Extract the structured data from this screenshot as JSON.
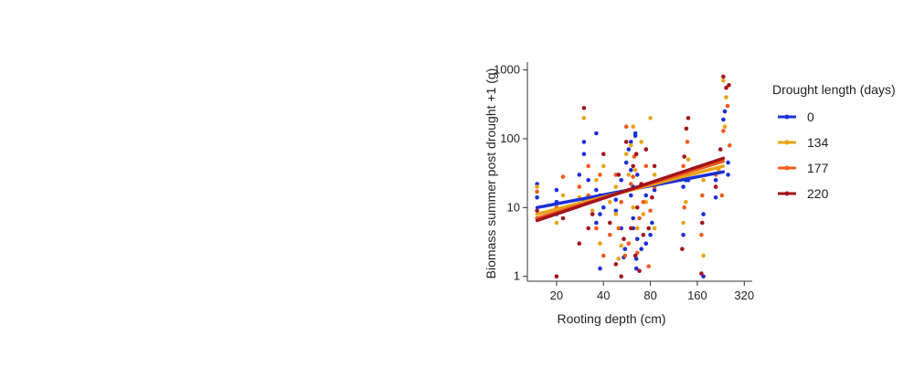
{
  "photo": {
    "description_icon": "field-trial-photo"
  },
  "chart_data": {
    "type": "scatter",
    "xlabel": "Rooting depth (cm)",
    "ylabel": "Biomass summer post drought +1 (g)",
    "x_scale": "log",
    "y_scale": "log",
    "xlim": [
      13,
      360
    ],
    "ylim": [
      0.85,
      1300
    ],
    "x_ticks": [
      20,
      40,
      80,
      160,
      320
    ],
    "y_ticks": [
      1,
      10,
      100,
      1000
    ],
    "legend_title": "Drought length (days)",
    "legend_position": "right",
    "series": [
      {
        "name": "0",
        "color": "#1a2fd6",
        "trend": [
          [
            15,
            10
          ],
          [
            235,
            33
          ]
        ],
        "points": [
          [
            15,
            14
          ],
          [
            15,
            22
          ],
          [
            20,
            12
          ],
          [
            20,
            18
          ],
          [
            20,
            8
          ],
          [
            28,
            30
          ],
          [
            30,
            12
          ],
          [
            30,
            60
          ],
          [
            30,
            90
          ],
          [
            32,
            25
          ],
          [
            36,
            6
          ],
          [
            36,
            18
          ],
          [
            36,
            120
          ],
          [
            38,
            8
          ],
          [
            38,
            1.3
          ],
          [
            40,
            10
          ],
          [
            48,
            13
          ],
          [
            48,
            9
          ],
          [
            52,
            5
          ],
          [
            52,
            25
          ],
          [
            54,
            1.9
          ],
          [
            55,
            2.5
          ],
          [
            56,
            45
          ],
          [
            58,
            70
          ],
          [
            60,
            35
          ],
          [
            60,
            15
          ],
          [
            60,
            90
          ],
          [
            62,
            5
          ],
          [
            62,
            7
          ],
          [
            62,
            20
          ],
          [
            64,
            110
          ],
          [
            64,
            120
          ],
          [
            65,
            1.3
          ],
          [
            65,
            1.8
          ],
          [
            66,
            3.5
          ],
          [
            66,
            30
          ],
          [
            70,
            2.5
          ],
          [
            75,
            3
          ],
          [
            75,
            15
          ],
          [
            80,
            4
          ],
          [
            82,
            6
          ],
          [
            85,
            18
          ],
          [
            130,
            4
          ],
          [
            130,
            20
          ],
          [
            135,
            25
          ],
          [
            135,
            30
          ],
          [
            140,
            25
          ],
          [
            175,
            1
          ],
          [
            175,
            8
          ],
          [
            210,
            14
          ],
          [
            210,
            25
          ],
          [
            235,
            190
          ],
          [
            240,
            250
          ],
          [
            252,
            45
          ],
          [
            252,
            30
          ]
        ]
      },
      {
        "name": "134",
        "color": "#e8a317",
        "trend": [
          [
            15,
            8
          ],
          [
            235,
            40
          ]
        ],
        "points": [
          [
            15,
            20
          ],
          [
            20,
            6
          ],
          [
            22,
            15
          ],
          [
            28,
            14
          ],
          [
            30,
            200
          ],
          [
            32,
            12
          ],
          [
            34,
            9
          ],
          [
            36,
            25
          ],
          [
            38,
            3
          ],
          [
            40,
            40
          ],
          [
            44,
            12
          ],
          [
            48,
            8
          ],
          [
            48,
            20
          ],
          [
            50,
            1.8
          ],
          [
            52,
            2.8
          ],
          [
            56,
            60
          ],
          [
            58,
            30
          ],
          [
            60,
            80
          ],
          [
            62,
            10
          ],
          [
            62,
            150
          ],
          [
            64,
            35
          ],
          [
            66,
            5
          ],
          [
            70,
            90
          ],
          [
            72,
            8
          ],
          [
            75,
            12
          ],
          [
            78,
            22
          ],
          [
            80,
            200
          ],
          [
            85,
            5
          ],
          [
            85,
            30
          ],
          [
            130,
            6
          ],
          [
            135,
            12
          ],
          [
            140,
            50
          ],
          [
            175,
            2
          ],
          [
            175,
            25
          ],
          [
            210,
            20
          ],
          [
            220,
            35
          ],
          [
            235,
            700
          ],
          [
            245,
            400
          ],
          [
            240,
            150
          ]
        ]
      },
      {
        "name": "177",
        "color": "#f05a1e",
        "trend": [
          [
            15,
            7
          ],
          [
            235,
            47
          ]
        ],
        "points": [
          [
            15,
            17
          ],
          [
            15,
            7
          ],
          [
            20,
            10
          ],
          [
            22,
            28
          ],
          [
            28,
            20
          ],
          [
            32,
            40
          ],
          [
            32,
            15
          ],
          [
            36,
            5
          ],
          [
            38,
            30
          ],
          [
            40,
            2
          ],
          [
            44,
            4
          ],
          [
            48,
            30
          ],
          [
            50,
            5
          ],
          [
            52,
            12
          ],
          [
            55,
            2
          ],
          [
            56,
            150
          ],
          [
            58,
            3
          ],
          [
            60,
            22
          ],
          [
            62,
            28
          ],
          [
            63,
            55
          ],
          [
            66,
            2.2
          ],
          [
            68,
            7
          ],
          [
            72,
            12
          ],
          [
            75,
            40
          ],
          [
            78,
            1.4
          ],
          [
            80,
            9
          ],
          [
            85,
            20
          ],
          [
            130,
            40
          ],
          [
            132,
            10
          ],
          [
            138,
            90
          ],
          [
            170,
            4
          ],
          [
            172,
            15
          ],
          [
            210,
            30
          ],
          [
            230,
            15
          ],
          [
            235,
            130
          ],
          [
            250,
            300
          ],
          [
            258,
            80
          ]
        ]
      },
      {
        "name": "220",
        "color": "#a3131b",
        "trend": [
          [
            15,
            6.5
          ],
          [
            235,
            52
          ]
        ],
        "points": [
          [
            15,
            9
          ],
          [
            20,
            1
          ],
          [
            22,
            7
          ],
          [
            28,
            3
          ],
          [
            30,
            280
          ],
          [
            32,
            5
          ],
          [
            34,
            8
          ],
          [
            38,
            15
          ],
          [
            40,
            60
          ],
          [
            44,
            6
          ],
          [
            48,
            1.5
          ],
          [
            50,
            30
          ],
          [
            52,
            1
          ],
          [
            54,
            3.5
          ],
          [
            56,
            90
          ],
          [
            58,
            18
          ],
          [
            60,
            5
          ],
          [
            62,
            40
          ],
          [
            64,
            2
          ],
          [
            65,
            60
          ],
          [
            66,
            10
          ],
          [
            68,
            1.2
          ],
          [
            70,
            22
          ],
          [
            72,
            4
          ],
          [
            75,
            70
          ],
          [
            78,
            5
          ],
          [
            82,
            14
          ],
          [
            85,
            40
          ],
          [
            128,
            2.5
          ],
          [
            132,
            55
          ],
          [
            136,
            140
          ],
          [
            140,
            200
          ],
          [
            170,
            1.1
          ],
          [
            172,
            6
          ],
          [
            210,
            20
          ],
          [
            225,
            70
          ],
          [
            235,
            800
          ],
          [
            245,
            550
          ],
          [
            255,
            600
          ]
        ]
      }
    ]
  }
}
